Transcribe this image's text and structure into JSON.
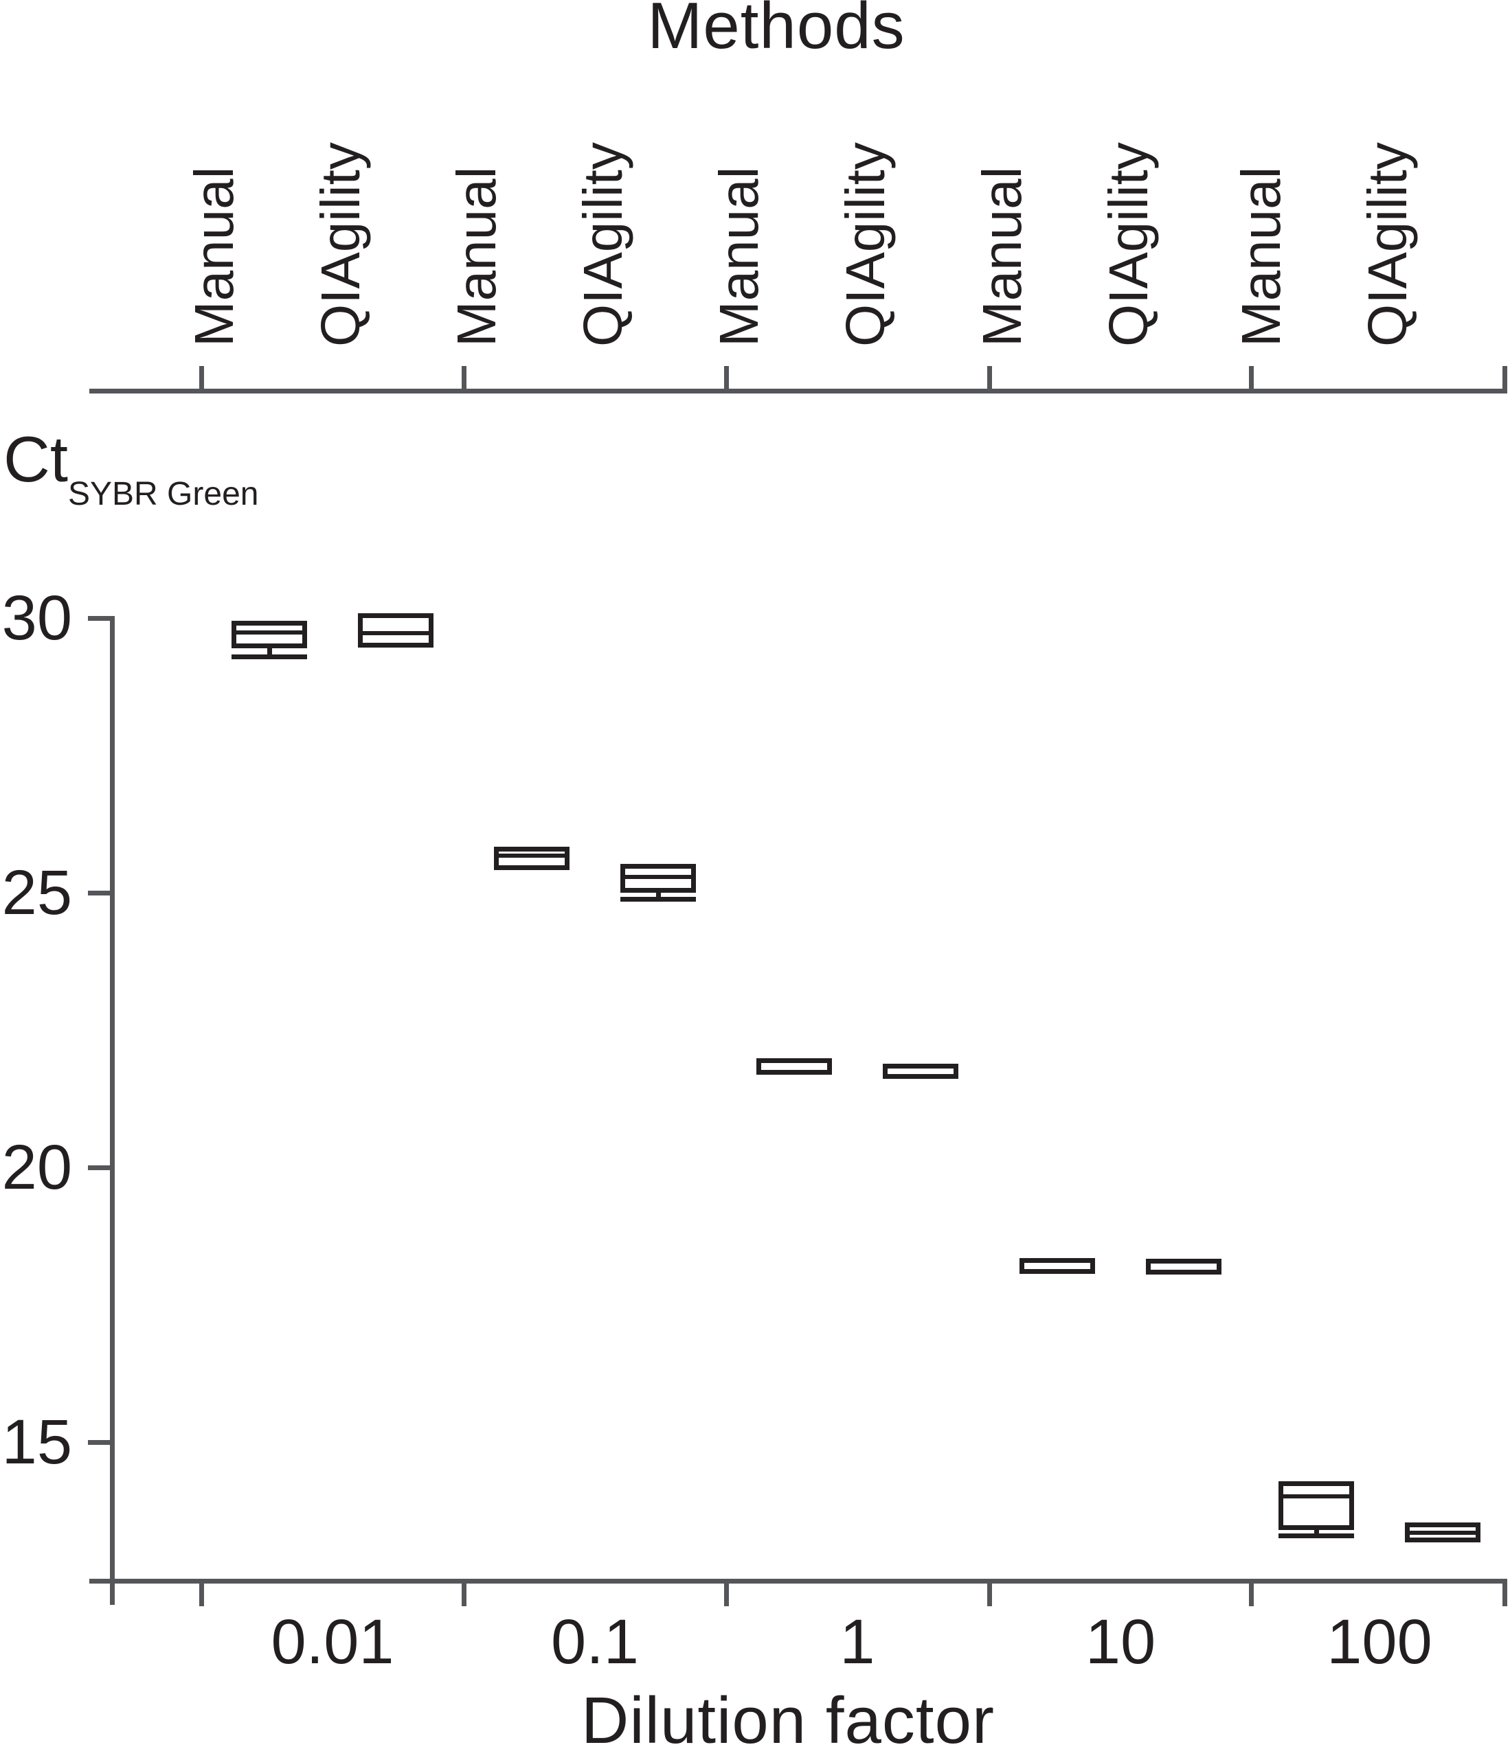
{
  "figure": {
    "top_axis_title": "Methods",
    "y_axis_label_main": "Ct",
    "y_axis_label_subscript": "SYBR Green",
    "x_axis_title": "Dilution factor"
  },
  "colors": {
    "background": "#ffffff",
    "axis": "#55565a",
    "ink": "#231f20"
  },
  "chart_data": {
    "type": "boxplot",
    "title": "Methods",
    "xlabel": "Dilution factor",
    "ylabel": "Ct SYBR Green",
    "grid": false,
    "legend_position": "none",
    "ylim": [
      12.0,
      30.1
    ],
    "y_ticks": [
      30,
      25,
      20,
      15
    ],
    "x_groups": [
      "0.01",
      "0.1",
      "1",
      "10",
      "100"
    ],
    "methods_per_group": [
      "Manual",
      "QIAgility"
    ],
    "boxes": [
      {
        "dilution": "0.01",
        "method": "Manual",
        "q3": 29.91,
        "median": 29.74,
        "q1": 29.49,
        "whisker_low": 29.29
      },
      {
        "dilution": "0.01",
        "method": "QIAgility",
        "q3": 30.04,
        "median": 29.72,
        "q1": 29.5
      },
      {
        "dilution": "0.1",
        "method": "Manual",
        "q3": 25.79,
        "median": 25.68,
        "q1": 25.46
      },
      {
        "dilution": "0.1",
        "method": "QIAgility",
        "q3": 25.48,
        "median": 25.29,
        "q1": 25.04,
        "whisker_low": 24.88
      },
      {
        "dilution": "1",
        "method": "Manual",
        "q3": 21.94,
        "median": 21.84,
        "q1": 21.73
      },
      {
        "dilution": "1",
        "method": "QIAgility",
        "q3": 21.85,
        "median": 21.76,
        "q1": 21.66
      },
      {
        "dilution": "10",
        "method": "Manual",
        "q3": 18.31,
        "median": 18.21,
        "q1": 18.1
      },
      {
        "dilution": "10",
        "method": "QIAgility",
        "q3": 18.3,
        "median": 18.2,
        "q1": 18.1
      },
      {
        "dilution": "100",
        "method": "Manual",
        "q3": 14.25,
        "median": 14.01,
        "q1": 13.44,
        "whisker_low": 13.29
      },
      {
        "dilution": "100",
        "method": "QIAgility",
        "q3": 13.49,
        "median": 13.35,
        "q1": 13.22
      }
    ]
  }
}
